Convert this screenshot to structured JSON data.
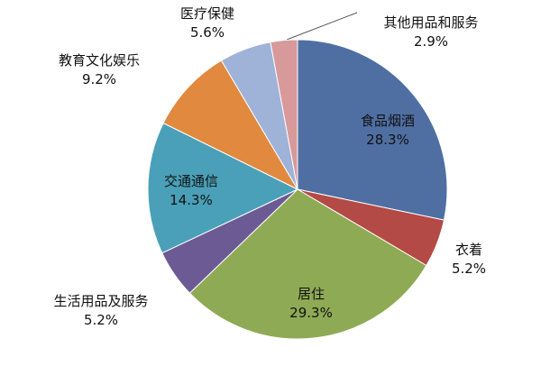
{
  "chart_data": {
    "type": "pie",
    "categories": [
      "食品烟酒",
      "衣着",
      "居住",
      "生活用品及服务",
      "交通通信",
      "教育文化娱乐",
      "医疗保健",
      "其他用品和服务"
    ],
    "values": [
      28.3,
      5.2,
      29.3,
      5.2,
      14.3,
      9.2,
      5.6,
      2.9
    ],
    "value_labels": [
      "28.3%",
      "5.2%",
      "29.3%",
      "5.2%",
      "14.3%",
      "9.2%",
      "5.6%",
      "2.9%"
    ],
    "colors": [
      "#4f6fa3",
      "#b44a45",
      "#8faa55",
      "#6c5a94",
      "#4aa0b8",
      "#e0893f",
      "#9fb2d8",
      "#d8999a"
    ]
  }
}
